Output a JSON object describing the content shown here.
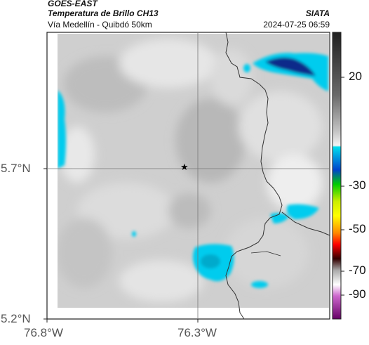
{
  "header": {
    "satellite": "GOES-EAST",
    "product": "Temperatura de Brillo CH13",
    "route": "Vía Medellín - Quibdó 50km",
    "org": "SIATA",
    "datetime": "2024-07-25 06:59"
  },
  "axes": {
    "y_labels": [
      "5.7°N",
      "5.2°N"
    ],
    "x_labels": [
      "76.8°W",
      "76.3°W"
    ]
  },
  "colorbar": {
    "ticks": [
      "20",
      "-30",
      "-50",
      "-70",
      "-90"
    ],
    "stops": [
      {
        "t": 20,
        "color": "#202020"
      },
      {
        "t": 12,
        "color": "#6a6a6a"
      },
      {
        "t": 0,
        "color": "#c0c0c0"
      },
      {
        "t": -22,
        "color": "#f2f2f2"
      },
      {
        "t": -23,
        "color": "#00ddee"
      },
      {
        "t": -32,
        "color": "#0033bb"
      },
      {
        "t": -38,
        "color": "#00cc00"
      },
      {
        "t": -44,
        "color": "#ccee00"
      },
      {
        "t": -50,
        "color": "#ffff00"
      },
      {
        "t": -58,
        "color": "#ff8800"
      },
      {
        "t": -63,
        "color": "#ff0000"
      },
      {
        "t": -68,
        "color": "#330000"
      },
      {
        "t": -73,
        "color": "#bbbbbb"
      },
      {
        "t": -78,
        "color": "#ffffff"
      },
      {
        "t": -83,
        "color": "#cc66cc"
      },
      {
        "t": -92,
        "color": "#660066"
      }
    ]
  },
  "marker": {
    "symbol": "★"
  }
}
